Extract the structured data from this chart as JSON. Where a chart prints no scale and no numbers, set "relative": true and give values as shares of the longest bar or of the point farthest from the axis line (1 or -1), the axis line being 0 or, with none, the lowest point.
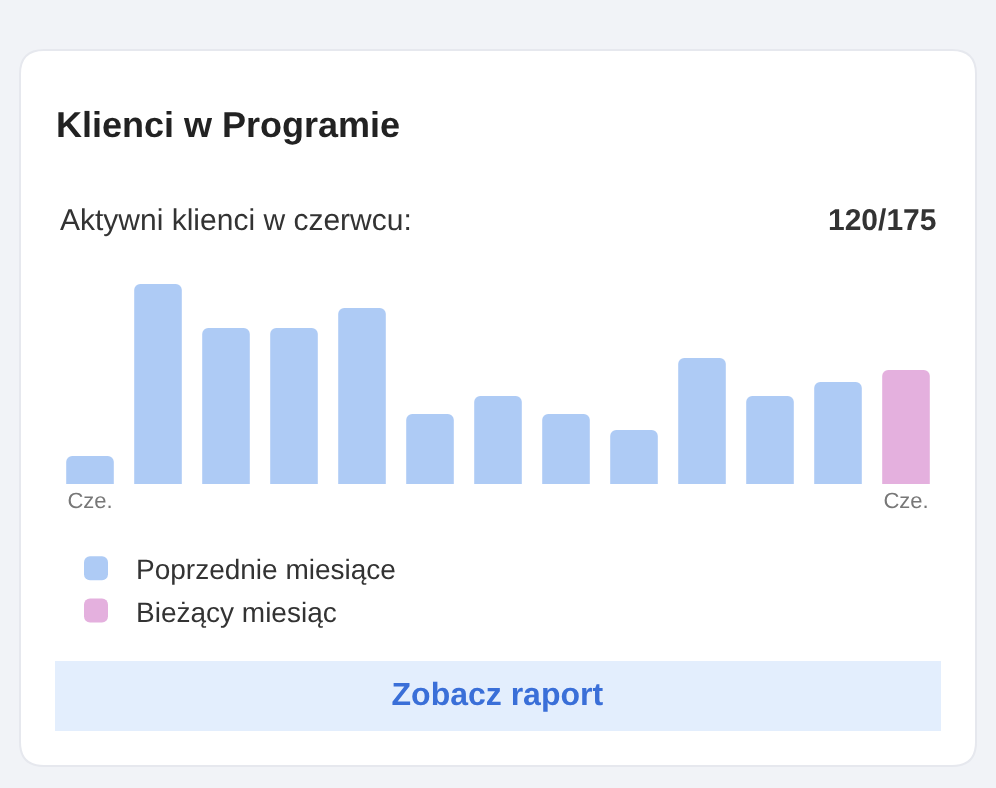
{
  "chart_data": {
    "type": "bar",
    "title": "Klienci w Programie",
    "relative": true,
    "categories": [
      "Cze.",
      null,
      null,
      null,
      null,
      null,
      null,
      null,
      null,
      null,
      null,
      null,
      "Cze."
    ],
    "series": [
      {
        "name": "Poprzednie miesiące",
        "color": "#aecbf5",
        "values": [
          0.14,
          1,
          0.78,
          0.78,
          0.88,
          0.35,
          0.44,
          0.35,
          0.27,
          0.63,
          0.44,
          0.51,
          null
        ]
      },
      {
        "name": "Bieżący miesiąc",
        "color": "#e4b0de",
        "values": [
          null,
          null,
          null,
          null,
          null,
          null,
          null,
          null,
          null,
          null,
          null,
          null,
          0.57
        ]
      }
    ],
    "legend": "bottom",
    "annotations": [
      "Aktywni klienci w czerwcu:",
      "120/175",
      "Zobacz raport"
    ]
  }
}
